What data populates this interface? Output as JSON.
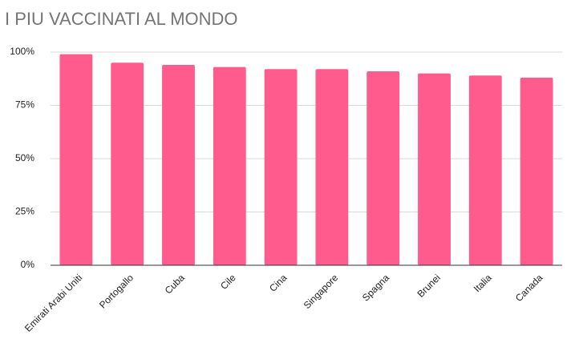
{
  "chart_data": {
    "type": "bar",
    "title": "I PIU VACCINATI AL MONDO",
    "categories": [
      "Emirati Arabi Uniti",
      "Portogallo",
      "Cuba",
      "Cile",
      "Cina",
      "Singapore",
      "Spagna",
      "Brunei",
      "Italia",
      "Canada"
    ],
    "values": [
      99,
      95,
      94,
      93,
      92,
      92,
      91,
      90,
      89,
      88
    ],
    "color": "#ff5b8c",
    "ylim": [
      0,
      100
    ],
    "yticks": [
      {
        "value": 0,
        "label": "0%"
      },
      {
        "value": 25,
        "label": "25%"
      },
      {
        "value": 50,
        "label": "50%"
      },
      {
        "value": 75,
        "label": "75%"
      },
      {
        "value": 100,
        "label": "100%"
      }
    ],
    "grid": true
  }
}
